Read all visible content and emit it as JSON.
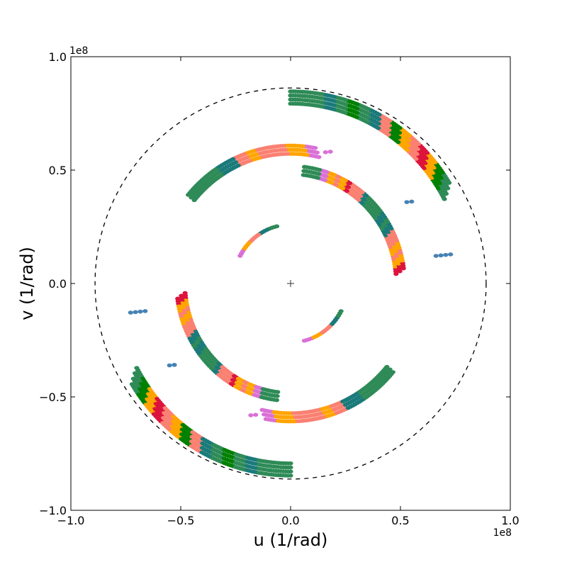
{
  "chart_data": {
    "type": "scatter",
    "title": "",
    "xlabel": "u (1/rad)",
    "ylabel": "v (1/rad)",
    "x_offset_label": "1e8",
    "y_offset_label": "1e8",
    "xlim": [
      -1.0,
      1.0
    ],
    "ylim": [
      -1.0,
      1.0
    ],
    "x_ticks": [
      "−1.0",
      "−0.5",
      "0.0",
      "0.5",
      "1.0"
    ],
    "y_ticks": [
      "−1.0",
      "−0.5",
      "0.0",
      "0.5",
      "1.0"
    ],
    "grid": false,
    "legend": "none",
    "reference_circle_radius": 0.89,
    "center_marker": [
      0,
      0
    ],
    "palette": [
      "#2e8b57",
      "#1b7a7a",
      "#fa8072",
      "#ffa500",
      "#dc143c",
      "#008000",
      "#da70d6",
      "#4682b4",
      "#f0e68c"
    ],
    "tracks": [
      {
        "cx": 0,
        "cy": 0,
        "r": 0.26,
        "a0": 104,
        "a1": 152,
        "rows": 1,
        "colors": [
          0,
          0,
          1,
          1,
          2,
          2,
          2,
          3,
          3,
          6,
          6
        ]
      },
      {
        "cx": 0,
        "cy": 0,
        "r": 0.26,
        "a0": 284,
        "a1": 332,
        "rows": 1,
        "colors": [
          6,
          6,
          3,
          3,
          2,
          2,
          2,
          1,
          1,
          0,
          0
        ]
      },
      {
        "cx": 0,
        "cy": 0,
        "r": 0.5,
        "a0": 5,
        "a1": 83,
        "rows": 3,
        "colors": [
          4,
          3,
          2,
          3,
          2,
          2,
          1,
          0,
          1,
          0,
          0,
          0,
          1,
          2,
          2,
          4,
          3,
          2,
          3,
          6,
          0,
          0,
          0
        ]
      },
      {
        "cx": 0,
        "cy": 0,
        "r": 0.5,
        "a0": 185,
        "a1": 263,
        "rows": 3,
        "colors": [
          4,
          3,
          2,
          3,
          2,
          2,
          1,
          0,
          1,
          0,
          0,
          0,
          1,
          2,
          2,
          4,
          3,
          2,
          3,
          6,
          0,
          0,
          0
        ]
      },
      {
        "cx": 0,
        "cy": 0,
        "r": 0.59,
        "a0": 77,
        "a1": 140,
        "rows": 3,
        "colors": [
          6,
          3,
          3,
          2,
          2,
          2,
          3,
          2,
          1,
          1,
          0,
          0,
          0,
          0
        ]
      },
      {
        "cx": 0,
        "cy": 0,
        "r": 0.59,
        "a0": 257,
        "a1": 320,
        "rows": 3,
        "colors": [
          6,
          3,
          3,
          2,
          2,
          2,
          3,
          2,
          1,
          1,
          0,
          0,
          0,
          0
        ]
      },
      {
        "cx": 0,
        "cy": 0,
        "r": 0.82,
        "a0": 28,
        "a1": 90,
        "rows": 4,
        "colors": [
          0,
          5,
          3,
          4,
          2,
          3,
          5,
          2,
          1,
          0,
          5,
          0,
          1,
          0,
          0,
          0
        ]
      },
      {
        "cx": 0,
        "cy": 0,
        "r": 0.82,
        "a0": 208,
        "a1": 270,
        "rows": 4,
        "colors": [
          0,
          5,
          3,
          4,
          2,
          3,
          5,
          2,
          1,
          0,
          5,
          0,
          1,
          0,
          0,
          0
        ]
      }
    ],
    "clusters": [
      {
        "x": 0.695,
        "y": 0.125,
        "color": 7,
        "n": 4
      },
      {
        "x": -0.695,
        "y": -0.125,
        "color": 7,
        "n": 4
      },
      {
        "x": 0.54,
        "y": 0.36,
        "color": 7,
        "n": 2
      },
      {
        "x": -0.54,
        "y": -0.36,
        "color": 7,
        "n": 2
      },
      {
        "x": 0.17,
        "y": 0.58,
        "color": 6,
        "n": 2
      },
      {
        "x": -0.17,
        "y": -0.58,
        "color": 6,
        "n": 2
      }
    ]
  }
}
